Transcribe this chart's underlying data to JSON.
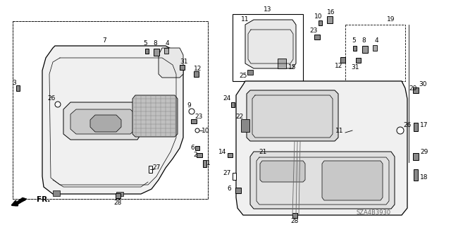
{
  "bg_color": "#ffffff",
  "line_color": "#000000",
  "gray_color": "#999999",
  "diagram_code": "SZA4B3930",
  "fr_label": "FR."
}
